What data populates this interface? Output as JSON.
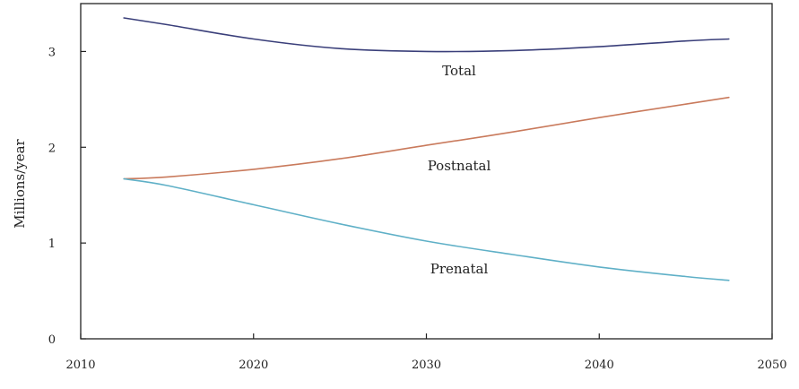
{
  "chart_data": {
    "type": "line",
    "title": "",
    "xlabel": "",
    "ylabel": "Millions/year",
    "xlim": [
      2010,
      2050
    ],
    "ylim": [
      0,
      3.5
    ],
    "xticks": [
      2010,
      2020,
      2030,
      2040,
      2050
    ],
    "yticks": [
      0,
      1,
      2,
      3
    ],
    "grid": false,
    "legend": "none",
    "series": [
      {
        "name": "Total",
        "color": "#3a3f7a",
        "x": [
          2012.5,
          2015,
          2020,
          2025,
          2030,
          2035,
          2040,
          2045,
          2047.5
        ],
        "y": [
          3.35,
          3.28,
          3.13,
          3.03,
          3.0,
          3.01,
          3.05,
          3.11,
          3.13
        ]
      },
      {
        "name": "Postnatal",
        "color": "#c97a5c",
        "x": [
          2012.5,
          2015,
          2020,
          2025,
          2030,
          2035,
          2040,
          2045,
          2047.5
        ],
        "y": [
          1.67,
          1.69,
          1.77,
          1.88,
          2.02,
          2.16,
          2.31,
          2.45,
          2.52
        ]
      },
      {
        "name": "Prenatal",
        "color": "#5fb0c7",
        "x": [
          2012.5,
          2015,
          2020,
          2025,
          2030,
          2035,
          2040,
          2045,
          2047.5
        ],
        "y": [
          1.67,
          1.6,
          1.4,
          1.2,
          1.02,
          0.88,
          0.75,
          0.65,
          0.61
        ]
      }
    ]
  }
}
